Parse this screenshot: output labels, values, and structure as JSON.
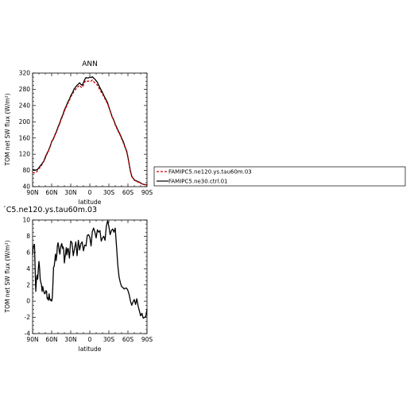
{
  "chart_data": [
    {
      "type": "line",
      "title": "ANN",
      "xlabel": "latitude",
      "ylabel": "TOM net SW flux (W/m²)",
      "x_ticks": [
        "90N",
        "60N",
        "30N",
        "0",
        "30S",
        "60S",
        "90S"
      ],
      "y_ticks": [
        "40",
        "80",
        "120",
        "160",
        "200",
        "240",
        "280",
        "320"
      ],
      "xlim": [
        90,
        -90
      ],
      "ylim": [
        40,
        320
      ],
      "colors": {
        "test": "#cc0000",
        "ctrl": "#000000"
      },
      "legend": {
        "placement": "right",
        "entries": [
          "FAMIPC5.ne120.ys.tau60m.03",
          "FAMIPC5.ne30.ctrl.01"
        ]
      },
      "series": [
        {
          "name": "FAMIPC5.ne120.ys.tau60m.03",
          "style": "dashed",
          "x": [
            90,
            87,
            84,
            82,
            80,
            78,
            75,
            72,
            70,
            68,
            65,
            62,
            60,
            57,
            55,
            52,
            50,
            47,
            45,
            42,
            40,
            37,
            35,
            32,
            30,
            27,
            25,
            22,
            20,
            18,
            16,
            14,
            12,
            10,
            8,
            6,
            4,
            2,
            0,
            -2,
            -4,
            -6,
            -8,
            -10,
            -12,
            -14,
            -16,
            -18,
            -20,
            -22,
            -25,
            -28,
            -30,
            -33,
            -35,
            -38,
            -40,
            -43,
            -45,
            -48,
            -50,
            -53,
            -55,
            -58,
            -60,
            -62,
            -64,
            -66,
            -68,
            -70,
            -72,
            -75,
            -78,
            -80,
            -82,
            -84,
            -86,
            -88,
            -90
          ],
          "y": [
            75,
            74,
            75,
            80,
            85,
            87,
            95,
            103,
            110,
            118,
            128,
            140,
            150,
            158,
            166,
            176,
            185,
            196,
            206,
            216,
            226,
            236,
            244,
            253,
            261,
            268,
            275,
            280,
            285,
            287,
            290,
            286,
            284,
            290,
            298,
            302,
            300,
            300,
            301,
            300,
            303,
            299,
            296,
            293,
            290,
            284,
            278,
            273,
            268,
            262,
            253,
            244,
            235,
            222,
            212,
            202,
            192,
            182,
            175,
            166,
            158,
            147,
            138,
            126,
            112,
            94,
            77,
            65,
            60,
            56,
            54,
            52,
            50,
            48,
            47,
            46,
            45,
            45,
            44
          ]
        },
        {
          "name": "FAMIPC5.ne30.ctrl.01",
          "style": "solid",
          "x": [
            90,
            87,
            84,
            82,
            80,
            78,
            75,
            72,
            70,
            68,
            65,
            62,
            60,
            57,
            55,
            52,
            50,
            47,
            45,
            42,
            40,
            37,
            35,
            32,
            30,
            27,
            25,
            22,
            20,
            18,
            16,
            14,
            12,
            10,
            8,
            6,
            4,
            2,
            0,
            -2,
            -4,
            -6,
            -8,
            -10,
            -12,
            -14,
            -16,
            -18,
            -20,
            -22,
            -25,
            -28,
            -30,
            -33,
            -35,
            -38,
            -40,
            -43,
            -45,
            -48,
            -50,
            -53,
            -55,
            -58,
            -60,
            -62,
            -64,
            -66,
            -68,
            -70,
            -72,
            -75,
            -78,
            -80,
            -82,
            -84,
            -86,
            -88,
            -90
          ],
          "y": [
            82,
            81,
            81,
            83,
            87,
            91,
            97,
            104,
            113,
            120,
            129,
            141,
            151,
            159,
            167,
            178,
            187,
            198,
            208,
            219,
            229,
            239,
            247,
            256,
            264,
            272,
            280,
            286,
            290,
            293,
            296,
            292,
            290,
            296,
            304,
            309,
            308,
            308,
            310,
            309,
            311,
            308,
            305,
            301,
            297,
            290,
            284,
            278,
            272,
            265,
            256,
            247,
            236,
            223,
            213,
            203,
            194,
            184,
            177,
            168,
            160,
            150,
            140,
            128,
            113,
            95,
            78,
            66,
            61,
            57,
            55,
            53,
            51,
            49,
            47,
            46,
            45,
            45,
            44
          ]
        }
      ]
    },
    {
      "type": "line",
      "title": "´C5.ne120.ys.tau60m.03",
      "xlabel": "latitude",
      "ylabel": "TOM net SW flux (W/m²)",
      "x_ticks": [
        "90N",
        "60N",
        "30N",
        "0",
        "30S",
        "60S",
        "90S"
      ],
      "y_ticks": [
        "-4",
        "-2",
        "0",
        "2",
        "4",
        "6",
        "8",
        "10"
      ],
      "xlim": [
        90,
        -90
      ],
      "ylim": [
        -4,
        10
      ],
      "colors": {
        "diff": "#000000"
      },
      "series": [
        {
          "style": "solid",
          "x": [
            90,
            89,
            88,
            87,
            86,
            85,
            84,
            83,
            82,
            81,
            80,
            79,
            78,
            77,
            76,
            75,
            74,
            73,
            72,
            71,
            70,
            69,
            68,
            67,
            66,
            65,
            64,
            63,
            62,
            61,
            60,
            59,
            58,
            57,
            56,
            55,
            54,
            53,
            52,
            51,
            50,
            49,
            48,
            47,
            46,
            45,
            44,
            43,
            42,
            41,
            40,
            39,
            38,
            37,
            36,
            35,
            34,
            33,
            32,
            31,
            30,
            28,
            26,
            24,
            22,
            20,
            18,
            16,
            14,
            12,
            10,
            8,
            6,
            4,
            2,
            0,
            -2,
            -4,
            -6,
            -8,
            -10,
            -12,
            -14,
            -16,
            -18,
            -20,
            -22,
            -24,
            -26,
            -28,
            -30,
            -32,
            -34,
            -36,
            -38,
            -40,
            -42,
            -44,
            -46,
            -48,
            -50,
            -52,
            -54,
            -56,
            -58,
            -60,
            -62,
            -64,
            -66,
            -68,
            -70,
            -72,
            -74,
            -76,
            -78,
            -80,
            -82,
            -84,
            -86,
            -88,
            -90
          ],
          "y": [
            5.7,
            6.8,
            6.7,
            7.0,
            4.0,
            1.2,
            2.6,
            3.2,
            2.7,
            3.9,
            4.9,
            4.1,
            2.7,
            2.3,
            2.0,
            1.2,
            1.8,
            1.4,
            1.1,
            0.9,
            1.0,
            1.3,
            1.2,
            0.3,
            0.4,
            0.1,
            0.9,
            0.3,
            0.1,
            0.2,
            0.0,
            0.4,
            2.1,
            4.2,
            4.3,
            5.0,
            5.8,
            5.0,
            5.6,
            6.8,
            7.2,
            6.8,
            6.1,
            5.8,
            6.6,
            6.9,
            7.1,
            6.5,
            6.7,
            6.3,
            4.7,
            5.4,
            5.9,
            6.6,
            5.7,
            6.4,
            6.5,
            5.9,
            5.3,
            6.5,
            7.4,
            7.2,
            5.6,
            6.5,
            7.3,
            5.6,
            7.5,
            6.3,
            7.1,
            7.3,
            6.2,
            6.9,
            6.8,
            8.1,
            8.2,
            7.9,
            6.8,
            8.6,
            9.0,
            8.5,
            7.8,
            8.8,
            8.5,
            8.7,
            7.4,
            7.8,
            8.0,
            7.5,
            9.2,
            9.9,
            9.2,
            8.2,
            8.7,
            8.9,
            8.5,
            9.0,
            6.8,
            4.5,
            3.0,
            2.3,
            1.8,
            1.7,
            1.5,
            1.6,
            1.6,
            1.3,
            0.8,
            0.0,
            -0.5,
            -0.1,
            0.2,
            -0.4,
            0.3,
            -0.6,
            -1.2,
            -1.8,
            -1.5,
            -2.1,
            -2.0,
            -1.9,
            -1.0
          ]
        }
      ]
    }
  ]
}
